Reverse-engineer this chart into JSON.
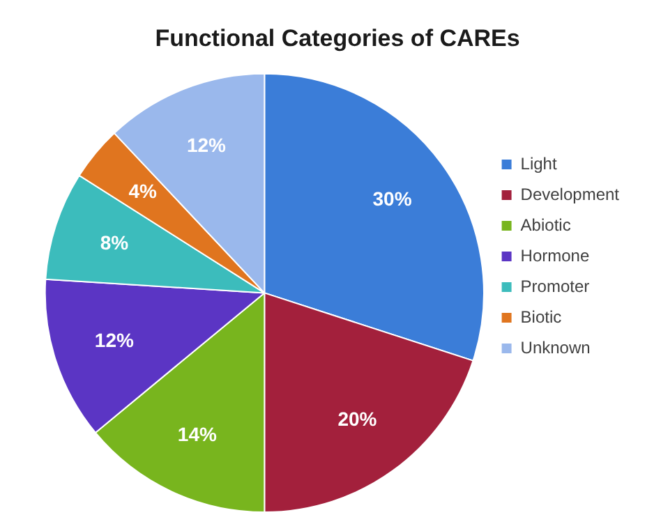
{
  "chart_data": {
    "type": "pie",
    "title": "Functional Categories of CAREs",
    "categories": [
      "Light",
      "Development",
      "Abiotic",
      "Hormone",
      "Promoter",
      "Biotic",
      "Unknown"
    ],
    "values": [
      30,
      20,
      14,
      12,
      8,
      4,
      12
    ],
    "colors": [
      "#3b7dd8",
      "#a3203c",
      "#78b51e",
      "#5b35c4",
      "#3cbcbc",
      "#e0751f",
      "#9ab8ec"
    ],
    "value_labels": [
      "30%",
      "20%",
      "14%",
      "12%",
      "8%",
      "4%",
      "12%"
    ],
    "legend": "right"
  }
}
